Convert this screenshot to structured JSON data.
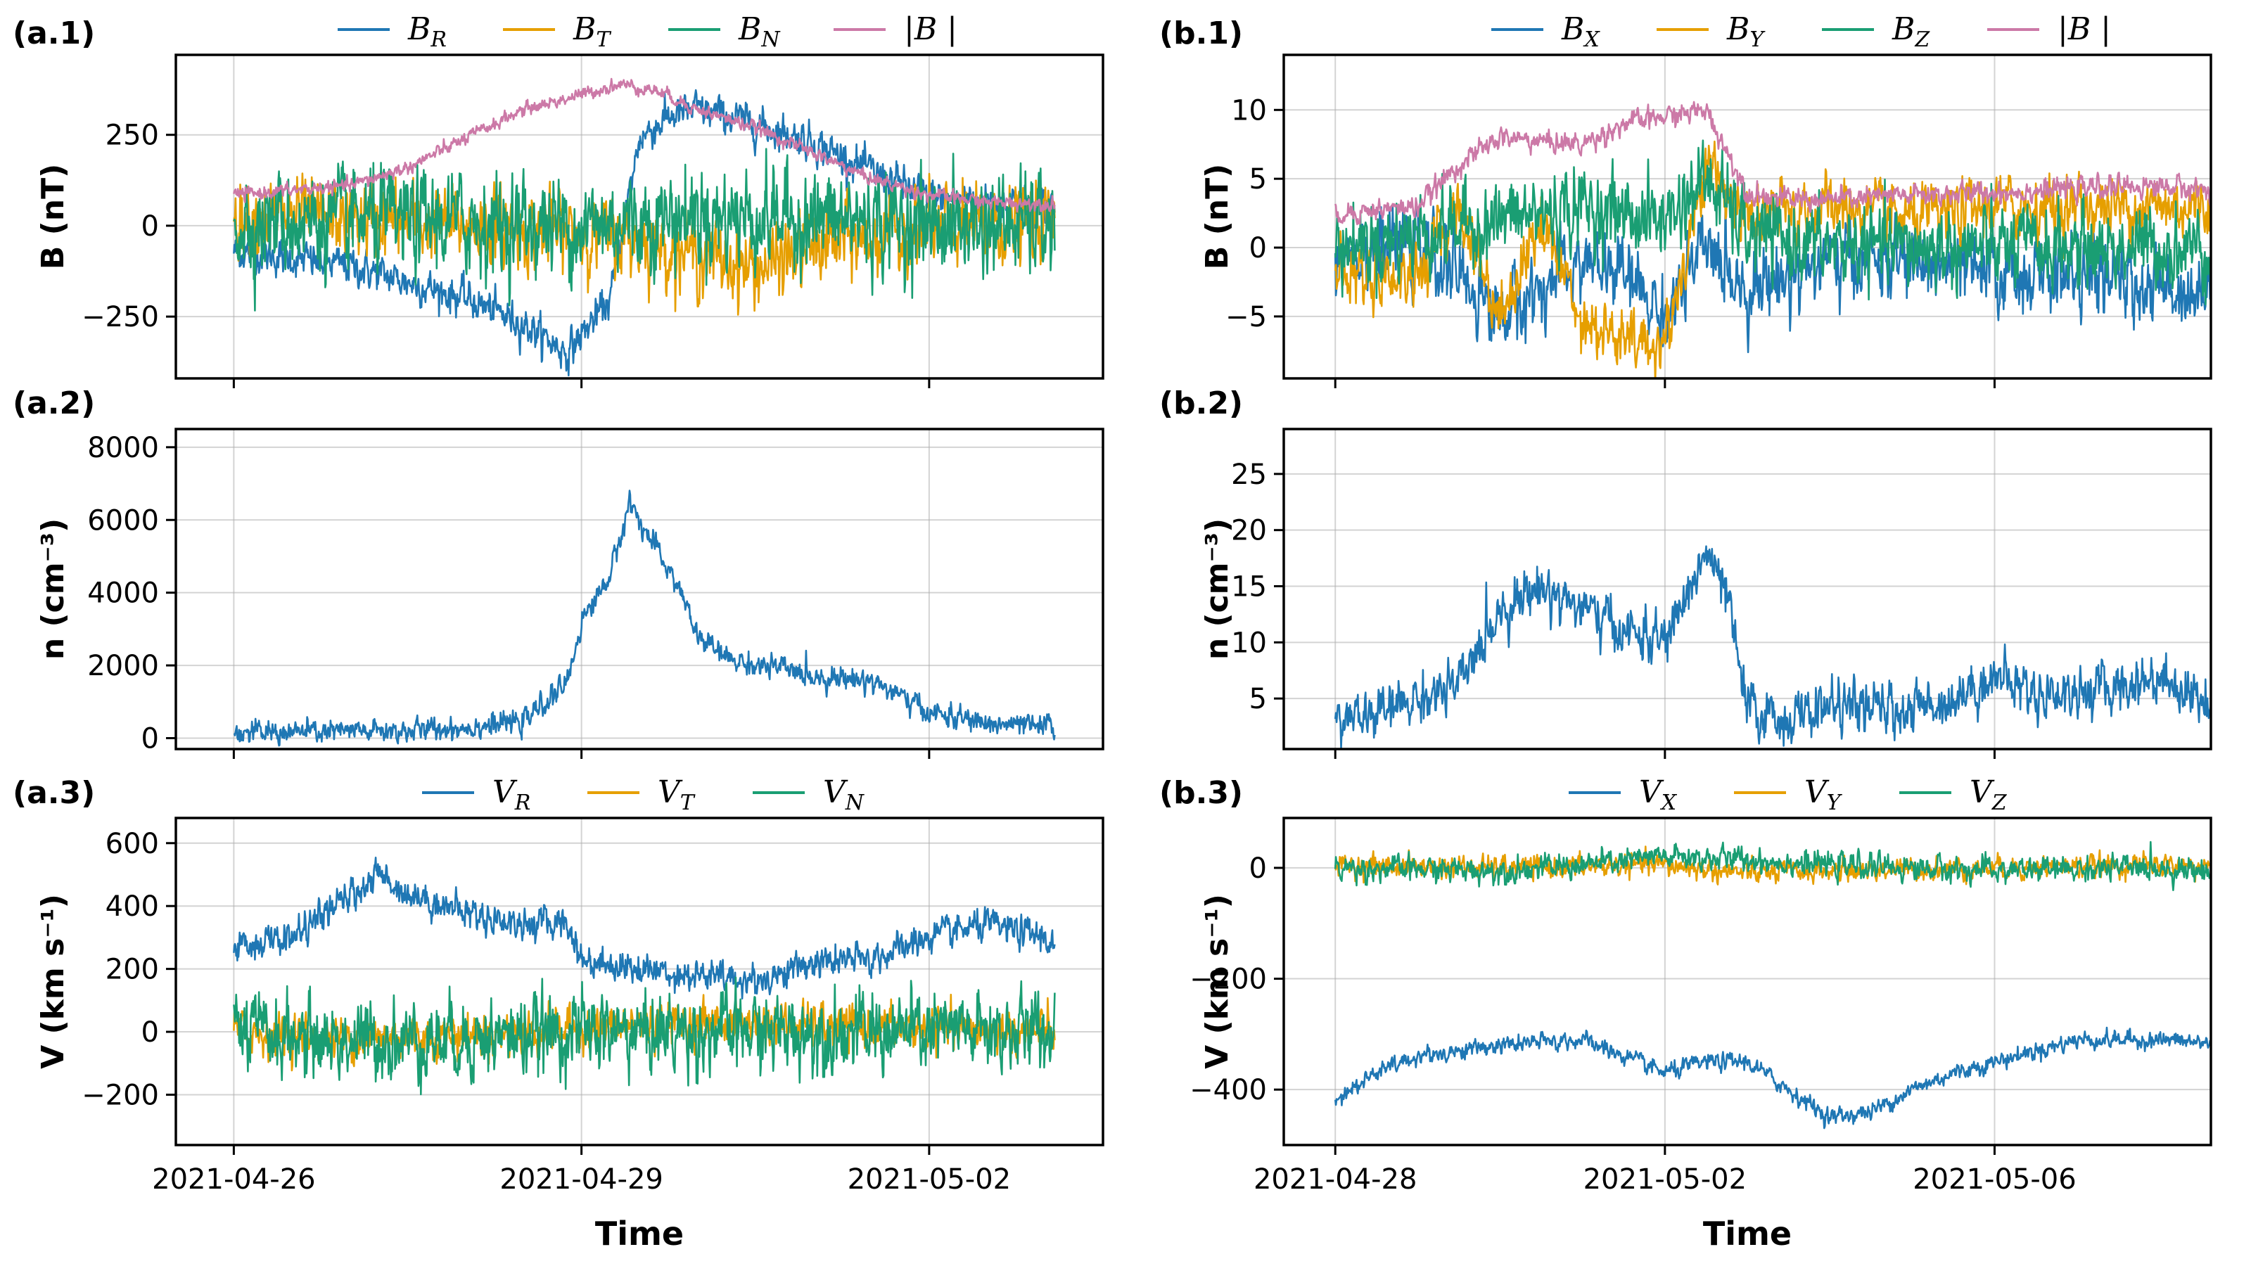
{
  "colors": {
    "blue": "#1f77b4",
    "orange": "#e69f00",
    "green": "#1a9e73",
    "pink": "#cc79a7"
  },
  "xlabel": "Time",
  "chart_data": [
    {
      "id": "a1",
      "panel": "(a.1)",
      "type": "line",
      "ylabel": "B (nT)",
      "xlim": [
        "2021-04-25T12:00",
        "2021-05-03T12:00"
      ],
      "ylim": [
        -420,
        470
      ],
      "yticks": [
        -250,
        0,
        250
      ],
      "xticks": [
        "2021-04-26",
        "2021-04-29",
        "2021-05-02"
      ],
      "show_xtick_labels": false,
      "legend": "top-outside",
      "series": [
        {
          "name": "B_R",
          "color_key": "blue",
          "noise": 22,
          "x": [
            "2021-04-26T00:00",
            "2021-04-27T00:00",
            "2021-04-28T00:00",
            "2021-04-28T12:00",
            "2021-04-28T21:00",
            "2021-04-29T00:00",
            "2021-04-29T06:00",
            "2021-04-29T12:00",
            "2021-04-29T18:00",
            "2021-04-30T00:00",
            "2021-04-30T12:00",
            "2021-05-01T00:00",
            "2021-05-01T12:00",
            "2021-05-02T00:00",
            "2021-05-02T12:00",
            "2021-05-03T00:00",
            "2021-05-03T02:00"
          ],
          "y": [
            -70,
            -110,
            -200,
            -270,
            -350,
            -300,
            -200,
            240,
            300,
            320,
            280,
            230,
            150,
            80,
            70,
            60,
            55
          ]
        },
        {
          "name": "B_T",
          "color_key": "orange",
          "noise": 45,
          "x": [
            "2021-04-26T00:00",
            "2021-04-27T00:00",
            "2021-04-28T00:00",
            "2021-04-29T00:00",
            "2021-04-29T12:00",
            "2021-04-30T00:00",
            "2021-04-30T12:00",
            "2021-05-01T00:00",
            "2021-05-02T00:00",
            "2021-05-03T02:00"
          ],
          "y": [
            30,
            20,
            0,
            -20,
            -40,
            -80,
            -120,
            -60,
            -10,
            10
          ]
        },
        {
          "name": "B_N",
          "color_key": "green",
          "noise": 60,
          "x": [
            "2021-04-26T00:00",
            "2021-04-27T00:00",
            "2021-04-28T00:00",
            "2021-04-29T00:00",
            "2021-04-30T00:00",
            "2021-05-01T00:00",
            "2021-05-02T00:00",
            "2021-05-03T02:00"
          ],
          "y": [
            10,
            15,
            10,
            0,
            30,
            20,
            5,
            0
          ]
        },
        {
          "name": "|B|",
          "color_key": "pink",
          "noise": 8,
          "x": [
            "2021-04-26T00:00",
            "2021-04-27T00:00",
            "2021-04-27T12:00",
            "2021-04-28T00:00",
            "2021-04-28T12:00",
            "2021-04-29T00:00",
            "2021-04-29T08:00",
            "2021-04-29T16:00",
            "2021-04-30T00:00",
            "2021-04-30T12:00",
            "2021-05-01T00:00",
            "2021-05-01T12:00",
            "2021-05-02T00:00",
            "2021-05-02T12:00",
            "2021-05-03T02:00"
          ],
          "y": [
            85,
            110,
            160,
            240,
            320,
            360,
            390,
            370,
            320,
            270,
            200,
            130,
            85,
            65,
            60
          ]
        }
      ]
    },
    {
      "id": "a2",
      "panel": "(a.2)",
      "type": "line",
      "ylabel": "n (cm⁻³)",
      "xlim": [
        "2021-04-25T12:00",
        "2021-05-03T12:00"
      ],
      "ylim": [
        -300,
        8500
      ],
      "yticks": [
        0,
        2000,
        4000,
        6000,
        8000
      ],
      "xticks": [
        "2021-04-26",
        "2021-04-29",
        "2021-05-02"
      ],
      "show_xtick_labels": false,
      "series": [
        {
          "name": "n",
          "color_key": "blue",
          "noise": 140,
          "x": [
            "2021-04-26T00:00",
            "2021-04-27T00:00",
            "2021-04-27T12:00",
            "2021-04-28T00:00",
            "2021-04-28T12:00",
            "2021-04-28T21:00",
            "2021-04-29T00:00",
            "2021-04-29T06:00",
            "2021-04-29T10:00",
            "2021-04-29T14:00",
            "2021-04-29T20:00",
            "2021-04-30T00:00",
            "2021-04-30T06:00",
            "2021-04-30T12:00",
            "2021-04-30T18:00",
            "2021-05-01T00:00",
            "2021-05-01T12:00",
            "2021-05-02T00:00",
            "2021-05-02T12:00",
            "2021-05-03T00:00",
            "2021-05-03T02:00"
          ],
          "y": [
            150,
            180,
            200,
            300,
            450,
            1500,
            3200,
            4500,
            6500,
            5500,
            4200,
            2800,
            2200,
            2000,
            1900,
            1700,
            1600,
            700,
            400,
            300,
            350
          ]
        }
      ]
    },
    {
      "id": "a3",
      "panel": "(a.3)",
      "type": "line",
      "ylabel": "V (km s⁻¹)",
      "xlim": [
        "2021-04-25T12:00",
        "2021-05-03T12:00"
      ],
      "ylim": [
        -360,
        680
      ],
      "yticks": [
        -200,
        0,
        200,
        400,
        600
      ],
      "xticks": [
        "2021-04-26",
        "2021-04-29",
        "2021-05-02"
      ],
      "show_xtick_labels": true,
      "legend": "top-outside",
      "series": [
        {
          "name": "V_R",
          "color_key": "blue",
          "noise": 22,
          "x": [
            "2021-04-26T00:00",
            "2021-04-26T12:00",
            "2021-04-27T00:00",
            "2021-04-27T06:00",
            "2021-04-27T12:00",
            "2021-04-28T00:00",
            "2021-04-28T12:00",
            "2021-04-28T21:00",
            "2021-04-29T00:00",
            "2021-04-29T12:00",
            "2021-04-30T00:00",
            "2021-04-30T12:00",
            "2021-05-01T00:00",
            "2021-05-01T12:00",
            "2021-05-02T00:00",
            "2021-05-02T12:00",
            "2021-05-03T00:00",
            "2021-05-03T02:00"
          ],
          "y": [
            270,
            300,
            430,
            500,
            440,
            380,
            340,
            350,
            230,
            200,
            180,
            160,
            220,
            230,
            300,
            340,
            300,
            270
          ]
        },
        {
          "name": "V_T",
          "color_key": "orange",
          "noise": 30,
          "x": [
            "2021-04-26T00:00",
            "2021-04-27T00:00",
            "2021-04-28T00:00",
            "2021-04-29T00:00",
            "2021-04-30T00:00",
            "2021-05-01T00:00",
            "2021-05-02T00:00",
            "2021-05-03T02:00"
          ],
          "y": [
            0,
            -20,
            -10,
            10,
            30,
            20,
            5,
            0
          ]
        },
        {
          "name": "V_N",
          "color_key": "green",
          "noise": 55,
          "x": [
            "2021-04-26T00:00",
            "2021-04-27T00:00",
            "2021-04-28T00:00",
            "2021-04-29T00:00",
            "2021-04-30T00:00",
            "2021-05-01T00:00",
            "2021-05-02T00:00",
            "2021-05-03T02:00"
          ],
          "y": [
            0,
            -30,
            -20,
            0,
            0,
            0,
            0,
            0
          ]
        }
      ]
    },
    {
      "id": "b1",
      "panel": "(b.1)",
      "type": "line",
      "ylabel": "B (nT)",
      "xlim": [
        "2021-04-27T09:00",
        "2021-05-08T15:00"
      ],
      "ylim": [
        -9.5,
        14
      ],
      "yticks": [
        -5,
        0,
        5,
        10
      ],
      "xticks": [
        "2021-04-28",
        "2021-05-02",
        "2021-05-06"
      ],
      "show_xtick_labels": false,
      "legend": "top-outside",
      "series": [
        {
          "name": "B_X",
          "color_key": "blue",
          "noise": 1.2,
          "x": [
            "2021-04-28T00:00",
            "2021-04-29T00:00",
            "2021-04-29T12:00",
            "2021-04-30T00:00",
            "2021-04-30T12:00",
            "2021-05-01T00:00",
            "2021-05-01T12:00",
            "2021-05-02T00:00",
            "2021-05-02T12:00",
            "2021-05-03T00:00",
            "2021-05-04T00:00",
            "2021-05-05T00:00",
            "2021-05-06T00:00",
            "2021-05-07T00:00",
            "2021-05-08T00:00",
            "2021-05-08T23:00"
          ],
          "y": [
            0,
            0,
            -2,
            -5,
            -3,
            -1,
            -2,
            -5,
            0,
            -3,
            -1,
            -1,
            -2,
            -2,
            -3,
            -3
          ]
        },
        {
          "name": "B_Y",
          "color_key": "orange",
          "noise": 1.0,
          "x": [
            "2021-04-28T00:00",
            "2021-04-29T00:00",
            "2021-04-29T12:00",
            "2021-04-30T00:00",
            "2021-04-30T12:00",
            "2021-05-01T00:00",
            "2021-05-01T12:00",
            "2021-05-02T00:00",
            "2021-05-02T12:00",
            "2021-05-03T00:00",
            "2021-05-04T00:00",
            "2021-05-05T00:00",
            "2021-05-06T00:00",
            "2021-05-07T00:00",
            "2021-05-08T00:00",
            "2021-05-08T23:00"
          ],
          "y": [
            -2,
            -2,
            3,
            -5,
            2,
            -5,
            -7,
            -7,
            6,
            2,
            3,
            2,
            3,
            3,
            3,
            3
          ]
        },
        {
          "name": "B_Z",
          "color_key": "green",
          "noise": 1.3,
          "x": [
            "2021-04-28T00:00",
            "2021-04-29T00:00",
            "2021-04-30T00:00",
            "2021-05-01T00:00",
            "2021-05-02T00:00",
            "2021-05-02T12:00",
            "2021-05-03T00:00",
            "2021-05-04T00:00",
            "2021-05-05T00:00",
            "2021-05-06T00:00",
            "2021-05-07T00:00",
            "2021-05-08T00:00",
            "2021-05-08T23:00"
          ],
          "y": [
            0,
            1,
            2,
            3,
            2,
            5,
            1,
            0,
            0,
            0,
            0,
            0,
            0
          ]
        },
        {
          "name": "|B|",
          "color_key": "pink",
          "noise": 0.35,
          "x": [
            "2021-04-28T00:00",
            "2021-04-29T00:00",
            "2021-04-29T12:00",
            "2021-04-30T00:00",
            "2021-05-01T00:00",
            "2021-05-01T12:00",
            "2021-05-02T00:00",
            "2021-05-02T12:00",
            "2021-05-03T00:00",
            "2021-05-03T12:00",
            "2021-05-04T00:00",
            "2021-05-05T00:00",
            "2021-05-06T00:00",
            "2021-05-07T00:00",
            "2021-05-08T00:00",
            "2021-05-08T23:00"
          ],
          "y": [
            2.5,
            3,
            6,
            8,
            7.5,
            9,
            9.5,
            10,
            4,
            3.5,
            3.5,
            3.8,
            4,
            4.3,
            4.5,
            4
          ]
        }
      ]
    },
    {
      "id": "b2",
      "panel": "(b.2)",
      "type": "line",
      "ylabel": "n (cm⁻³)",
      "xlim": [
        "2021-04-27T09:00",
        "2021-05-08T15:00"
      ],
      "ylim": [
        0.5,
        29
      ],
      "yticks": [
        5,
        10,
        15,
        20,
        25
      ],
      "xticks": [
        "2021-04-28",
        "2021-05-02",
        "2021-05-06"
      ],
      "show_xtick_labels": false,
      "series": [
        {
          "name": "n",
          "color_key": "blue",
          "noise": 1.0,
          "x": [
            "2021-04-28T00:00",
            "2021-04-28T12:00",
            "2021-04-29T00:00",
            "2021-04-29T12:00",
            "2021-04-30T00:00",
            "2021-04-30T12:00",
            "2021-05-01T00:00",
            "2021-05-01T12:00",
            "2021-05-02T00:00",
            "2021-05-02T06:00",
            "2021-05-02T12:00",
            "2021-05-02T18:00",
            "2021-05-03T00:00",
            "2021-05-03T12:00",
            "2021-05-04T00:00",
            "2021-05-04T12:00",
            "2021-05-05T00:00",
            "2021-05-05T12:00",
            "2021-05-06T00:00",
            "2021-05-06T12:00",
            "2021-05-07T00:00",
            "2021-05-07T12:00",
            "2021-05-08T00:00",
            "2021-05-08T12:00",
            "2021-05-08T23:00"
          ],
          "y": [
            3,
            3.5,
            5,
            6,
            13,
            15,
            13,
            11,
            10,
            14,
            18,
            14,
            4,
            3,
            4.5,
            4,
            4,
            5,
            7,
            5.5,
            5.5,
            6,
            7,
            5,
            5
          ]
        }
      ]
    },
    {
      "id": "b3",
      "panel": "(b.3)",
      "type": "line",
      "ylabel": "V (km s⁻¹)",
      "xlim": [
        "2021-04-27T09:00",
        "2021-05-08T15:00"
      ],
      "ylim": [
        -500,
        90
      ],
      "yticks": [
        -400,
        -200,
        0
      ],
      "xticks": [
        "2021-04-28",
        "2021-05-02",
        "2021-05-06"
      ],
      "show_xtick_labels": true,
      "legend": "top-outside",
      "series": [
        {
          "name": "V_X",
          "color_key": "blue",
          "noise": 7,
          "x": [
            "2021-04-28T00:00",
            "2021-04-28T12:00",
            "2021-04-29T00:00",
            "2021-04-30T00:00",
            "2021-05-01T00:00",
            "2021-05-01T12:00",
            "2021-05-02T00:00",
            "2021-05-02T12:00",
            "2021-05-03T00:00",
            "2021-05-03T12:00",
            "2021-05-04T00:00",
            "2021-05-04T12:00",
            "2021-05-05T00:00",
            "2021-05-05T12:00",
            "2021-05-06T00:00",
            "2021-05-06T12:00",
            "2021-05-07T00:00",
            "2021-05-08T00:00",
            "2021-05-08T23:00"
          ],
          "y": [
            -415,
            -370,
            -340,
            -320,
            -310,
            -340,
            -370,
            -350,
            -350,
            -400,
            -450,
            -440,
            -400,
            -370,
            -350,
            -330,
            -310,
            -310,
            -320
          ]
        },
        {
          "name": "V_Y",
          "color_key": "orange",
          "noise": 9,
          "x": [
            "2021-04-28T00:00",
            "2021-04-30T00:00",
            "2021-05-02T00:00",
            "2021-05-03T00:00",
            "2021-05-04T00:00",
            "2021-05-06T00:00",
            "2021-05-08T00:00",
            "2021-05-08T23:00"
          ],
          "y": [
            5,
            0,
            5,
            -10,
            -5,
            0,
            5,
            0
          ]
        },
        {
          "name": "V_Z",
          "color_key": "green",
          "noise": 10,
          "x": [
            "2021-04-28T00:00",
            "2021-04-30T00:00",
            "2021-05-01T00:00",
            "2021-05-02T00:00",
            "2021-05-03T00:00",
            "2021-05-04T00:00",
            "2021-05-06T00:00",
            "2021-05-08T00:00",
            "2021-05-08T23:00"
          ],
          "y": [
            0,
            -5,
            5,
            20,
            15,
            5,
            -5,
            0,
            -10
          ]
        }
      ]
    }
  ]
}
